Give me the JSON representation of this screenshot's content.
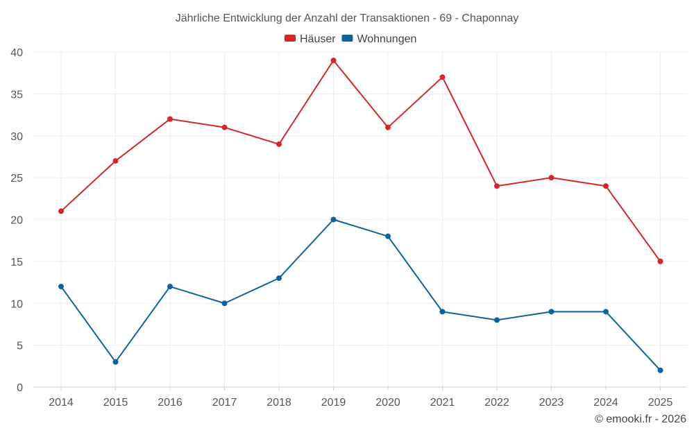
{
  "chart_data": {
    "type": "line",
    "title": "Jährliche Entwicklung der Anzahl der Transaktionen - 69 - Chaponnay",
    "categories": [
      "2014",
      "2015",
      "2016",
      "2017",
      "2018",
      "2019",
      "2020",
      "2021",
      "2022",
      "2023",
      "2024",
      "2025"
    ],
    "series": [
      {
        "name": "Häuser",
        "color": "#d62728",
        "values": [
          21,
          27,
          32,
          31,
          29,
          39,
          31,
          37,
          24,
          25,
          24,
          15
        ]
      },
      {
        "name": "Wohnungen",
        "color": "#0a64a0",
        "values": [
          12,
          3,
          12,
          10,
          13,
          20,
          18,
          9,
          8,
          9,
          9,
          2
        ]
      }
    ],
    "ylim": [
      0,
      40
    ],
    "yticks": [
      0,
      5,
      10,
      15,
      20,
      25,
      30,
      35,
      40
    ],
    "xlabel": "",
    "ylabel": "",
    "grid": true,
    "legend_position": "top-center"
  },
  "credit": "© emooki.fr - 2026"
}
